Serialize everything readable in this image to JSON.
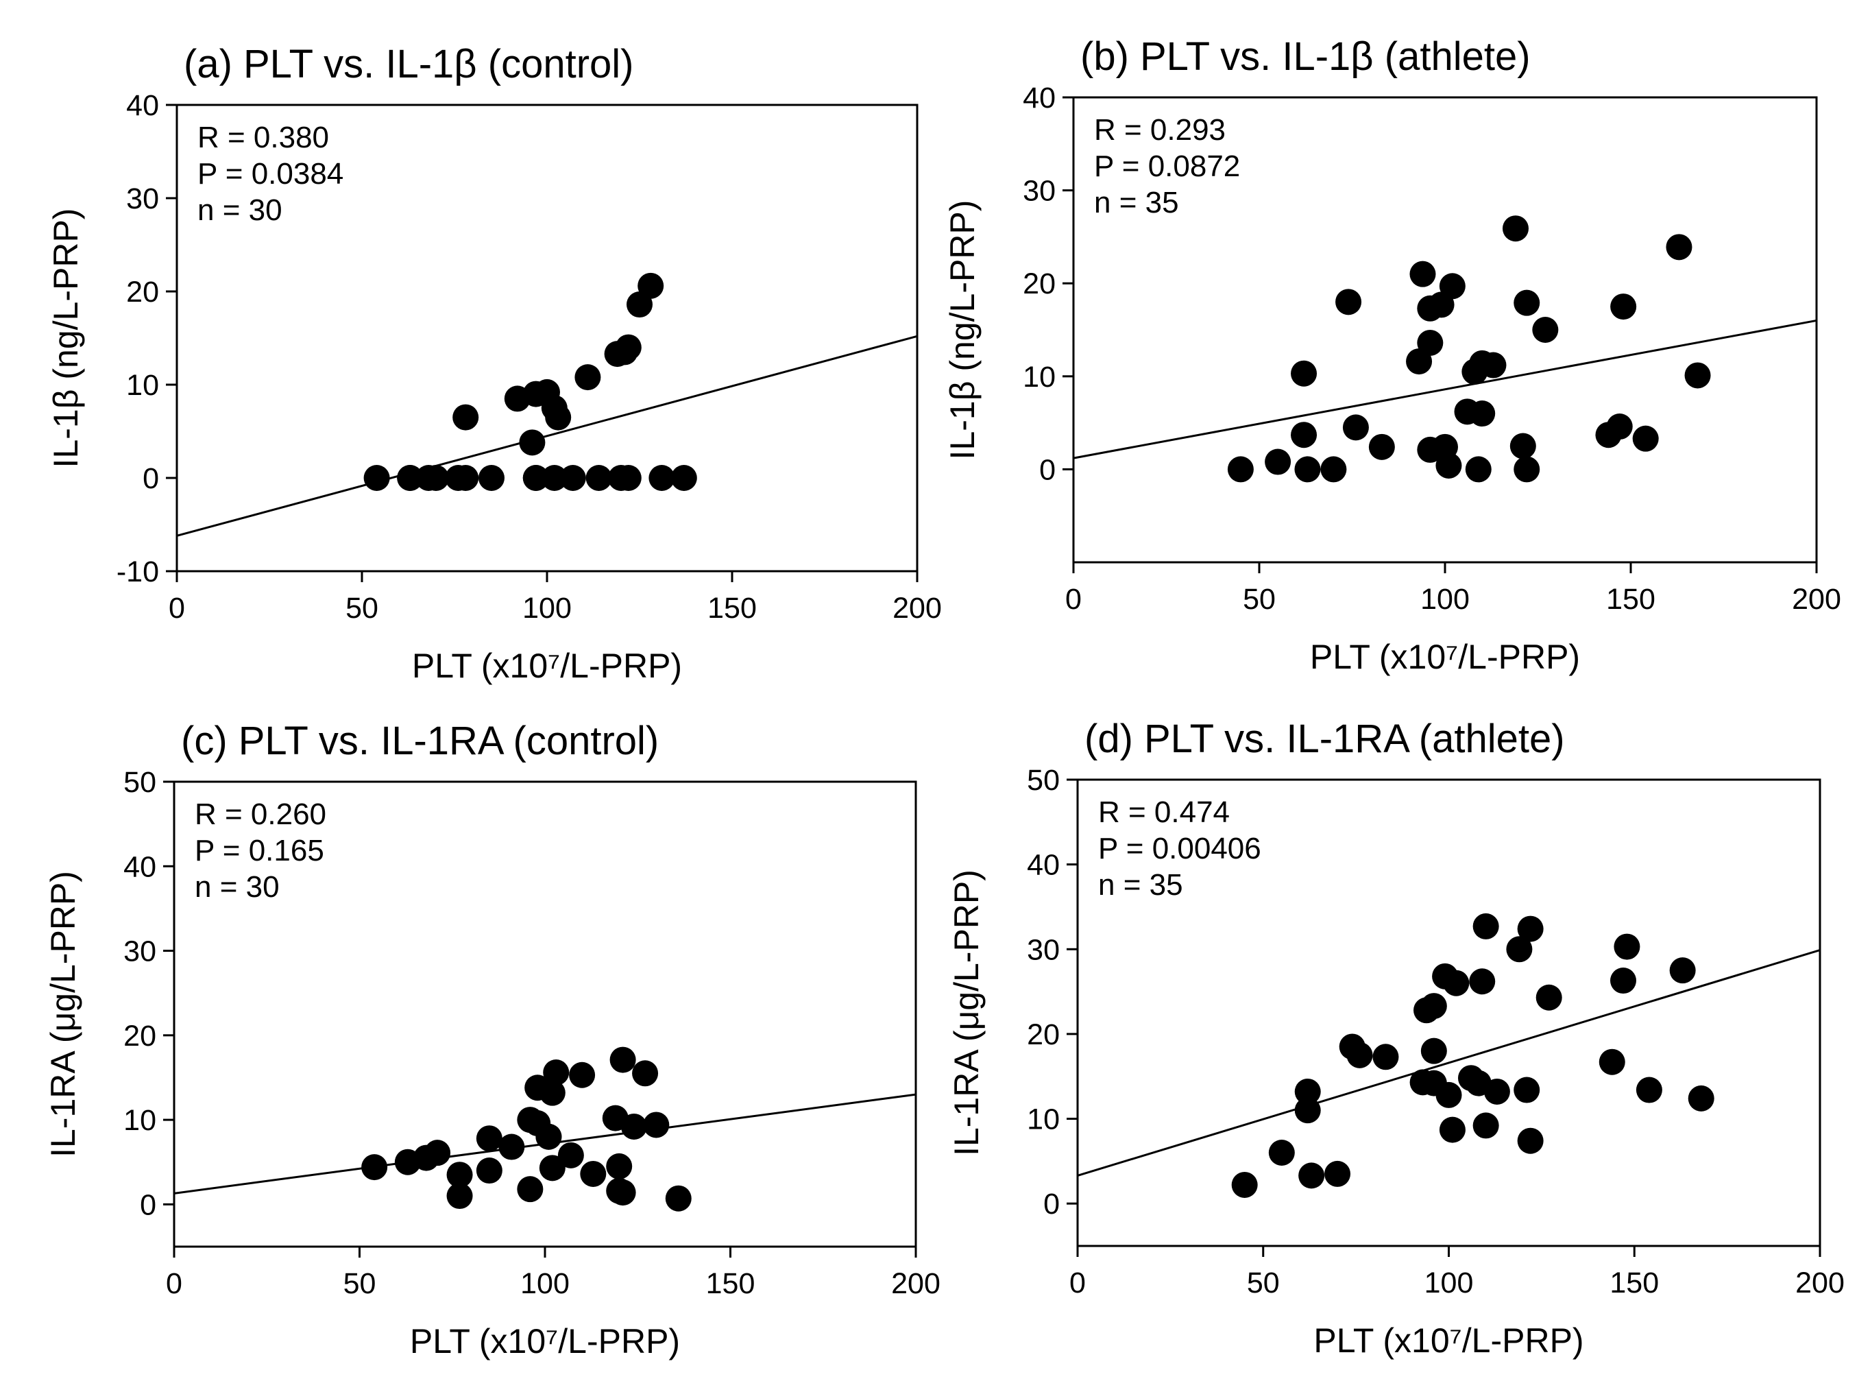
{
  "chart_data": [
    {
      "type": "scatter",
      "title": "(a) PLT vs. IL-1β (control)",
      "xlabel": "PLT (x10⁷/L-PRP)",
      "ylabel": "IL-1β (ng/L-PRP)",
      "xlim": [
        0,
        200
      ],
      "ylim": [
        -10,
        40
      ],
      "xticks": [
        0,
        50,
        100,
        150,
        200
      ],
      "yticks": [
        -10,
        0,
        10,
        20,
        30,
        40
      ],
      "grid": false,
      "annotations": [
        "R = 0.380",
        "P = 0.0384",
        "n = 30"
      ],
      "fit_line": [
        [
          0,
          -6.2
        ],
        [
          200,
          15.2
        ]
      ],
      "points": [
        [
          54,
          0
        ],
        [
          63,
          0
        ],
        [
          68,
          0
        ],
        [
          70,
          0
        ],
        [
          76,
          0
        ],
        [
          78,
          0
        ],
        [
          85,
          0
        ],
        [
          97,
          0
        ],
        [
          102,
          0
        ],
        [
          107,
          0
        ],
        [
          114,
          0
        ],
        [
          120,
          0
        ],
        [
          122,
          0
        ],
        [
          131,
          0
        ],
        [
          137,
          0
        ],
        [
          78,
          6.5
        ],
        [
          92,
          8.5
        ],
        [
          96,
          3.8
        ],
        [
          97,
          9.0
        ],
        [
          100,
          9.2
        ],
        [
          102,
          7.5
        ],
        [
          103,
          6.5
        ],
        [
          111,
          10.8
        ],
        [
          119,
          13.3
        ],
        [
          121,
          13.5
        ],
        [
          122,
          14.0
        ],
        [
          125,
          18.6
        ],
        [
          128,
          20.6
        ],
        [
          97,
          0
        ],
        [
          63,
          0
        ]
      ]
    },
    {
      "type": "scatter",
      "title": "(b) PLT vs. IL-1β (athlete)",
      "xlabel": "PLT (x10⁷/L-PRP)",
      "ylabel": "IL-1β (ng/L-PRP)",
      "xlim": [
        0,
        200
      ],
      "ylim": [
        -10,
        40
      ],
      "xticks": [
        0,
        50,
        100,
        150,
        200
      ],
      "yticks": [
        0,
        10,
        20,
        30,
        40
      ],
      "grid": false,
      "annotations": [
        "R = 0.293",
        "P = 0.0872",
        "n = 35"
      ],
      "fit_line": [
        [
          0,
          1.2
        ],
        [
          200,
          16.0
        ]
      ],
      "points": [
        [
          45,
          0
        ],
        [
          55,
          0.8
        ],
        [
          62,
          3.7
        ],
        [
          62,
          10.3
        ],
        [
          63,
          0
        ],
        [
          70,
          0
        ],
        [
          74,
          18.0
        ],
        [
          76,
          4.5
        ],
        [
          83,
          2.4
        ],
        [
          93,
          11.6
        ],
        [
          94,
          21.0
        ],
        [
          96,
          13.6
        ],
        [
          96,
          17.3
        ],
        [
          96,
          2.1
        ],
        [
          99,
          17.7
        ],
        [
          100,
          2.4
        ],
        [
          101,
          0.4
        ],
        [
          102,
          19.7
        ],
        [
          106,
          6.2
        ],
        [
          108,
          10.5
        ],
        [
          109,
          0
        ],
        [
          110,
          6.0
        ],
        [
          110,
          11.4
        ],
        [
          113,
          11.2
        ],
        [
          119,
          25.9
        ],
        [
          121,
          2.5
        ],
        [
          122,
          17.9
        ],
        [
          122,
          0
        ],
        [
          127,
          15.0
        ],
        [
          144,
          3.7
        ],
        [
          147,
          4.6
        ],
        [
          148,
          17.5
        ],
        [
          154,
          3.3
        ],
        [
          163,
          23.9
        ],
        [
          168,
          10.1
        ]
      ]
    },
    {
      "type": "scatter",
      "title": "(c) PLT vs. IL-1RA (control)",
      "xlabel": "PLT (x10⁷/L-PRP)",
      "ylabel": "IL-1RA (μg/L-PRP)",
      "xlim": [
        0,
        200
      ],
      "ylim": [
        -5,
        50
      ],
      "xticks": [
        0,
        50,
        100,
        150,
        200
      ],
      "yticks": [
        0,
        10,
        20,
        30,
        40,
        50
      ],
      "grid": false,
      "annotations": [
        "R = 0.260",
        "P = 0.165",
        "n = 30"
      ],
      "fit_line": [
        [
          0,
          1.3
        ],
        [
          200,
          13.0
        ]
      ],
      "points": [
        [
          54,
          4.4
        ],
        [
          63,
          5.0
        ],
        [
          68,
          5.5
        ],
        [
          71,
          6.1
        ],
        [
          77,
          3.5
        ],
        [
          77,
          1.0
        ],
        [
          85,
          7.8
        ],
        [
          85,
          4.0
        ],
        [
          91,
          6.8
        ],
        [
          96,
          10.0
        ],
        [
          96,
          1.8
        ],
        [
          98,
          9.6
        ],
        [
          98,
          13.8
        ],
        [
          101,
          8.0
        ],
        [
          102,
          4.3
        ],
        [
          102,
          13.2
        ],
        [
          103,
          15.6
        ],
        [
          107,
          5.8
        ],
        [
          110,
          15.3
        ],
        [
          113,
          3.6
        ],
        [
          119,
          10.2
        ],
        [
          120,
          1.6
        ],
        [
          120,
          4.5
        ],
        [
          121,
          17.1
        ],
        [
          121,
          1.4
        ],
        [
          124,
          9.2
        ],
        [
          127,
          15.5
        ],
        [
          130,
          9.4
        ],
        [
          136,
          0.7
        ],
        [
          101,
          8.0
        ]
      ]
    },
    {
      "type": "scatter",
      "title": "(d) PLT vs. IL-1RA (athlete)",
      "xlabel": "PLT (x10⁷/L-PRP)",
      "ylabel": "IL-1RA (μg/L-PRP)",
      "xlim": [
        0,
        200
      ],
      "ylim": [
        -5,
        50
      ],
      "xticks": [
        0,
        50,
        100,
        150,
        200
      ],
      "yticks": [
        0,
        10,
        20,
        30,
        40,
        50
      ],
      "grid": false,
      "annotations": [
        "R = 0.474",
        "P = 0.00406",
        "n = 35"
      ],
      "fit_line": [
        [
          0,
          3.3
        ],
        [
          200,
          29.9
        ]
      ],
      "points": [
        [
          45,
          2.2
        ],
        [
          55,
          6.0
        ],
        [
          62,
          13.2
        ],
        [
          62,
          11.0
        ],
        [
          63,
          3.3
        ],
        [
          70,
          3.5
        ],
        [
          74,
          18.5
        ],
        [
          76,
          17.5
        ],
        [
          83,
          17.3
        ],
        [
          93,
          14.3
        ],
        [
          94,
          22.8
        ],
        [
          96,
          23.3
        ],
        [
          96,
          18.0
        ],
        [
          96,
          14.2
        ],
        [
          99,
          26.8
        ],
        [
          100,
          12.8
        ],
        [
          101,
          8.7
        ],
        [
          102,
          26.0
        ],
        [
          106,
          14.8
        ],
        [
          108,
          14.2
        ],
        [
          109,
          26.2
        ],
        [
          110,
          9.2
        ],
        [
          110,
          32.7
        ],
        [
          113,
          13.2
        ],
        [
          119,
          30.0
        ],
        [
          121,
          13.4
        ],
        [
          122,
          32.4
        ],
        [
          122,
          7.4
        ],
        [
          127,
          24.3
        ],
        [
          144,
          16.7
        ],
        [
          147,
          26.3
        ],
        [
          148,
          30.3
        ],
        [
          154,
          13.4
        ],
        [
          163,
          27.5
        ],
        [
          168,
          12.4
        ]
      ]
    }
  ]
}
